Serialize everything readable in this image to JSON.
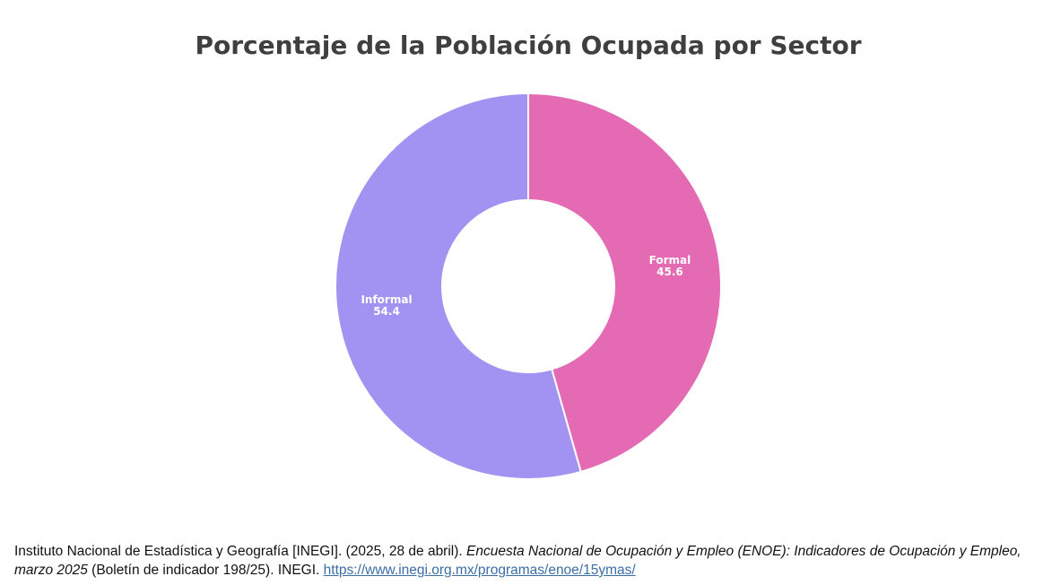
{
  "chart_data": {
    "type": "pie",
    "subtype": "donut",
    "title": "Porcentaje de la Población Ocupada por Sector",
    "categories": [
      "Formal",
      "Informal"
    ],
    "values": [
      45.6,
      54.4
    ],
    "colors": [
      "#e46ab3",
      "#a293f3"
    ],
    "start": "top",
    "direction": "clockwise"
  },
  "citation": {
    "part1": "Instituto Nacional de Estadística y Geografía [INEGI]. (2025, 28 de abril). ",
    "italic": "Encuesta Nacional de Ocupación y Empleo (ENOE): Indicadores de Ocupación y Empleo, marzo 2025",
    "part2": " (Boletín de indicador 198/25). INEGI. ",
    "link": "https://www.inegi.org.mx/programas/enoe/15ymas/"
  }
}
